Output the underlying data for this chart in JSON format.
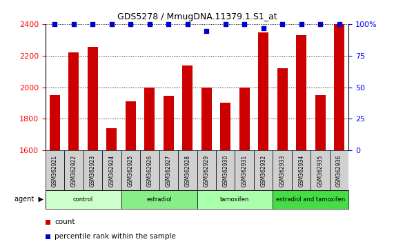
{
  "title": "GDS5278 / MmugDNA.11379.1.S1_at",
  "samples": [
    "GSM362921",
    "GSM362922",
    "GSM362923",
    "GSM362924",
    "GSM362925",
    "GSM362926",
    "GSM362927",
    "GSM362928",
    "GSM362929",
    "GSM362930",
    "GSM362931",
    "GSM362932",
    "GSM362933",
    "GSM362934",
    "GSM362935",
    "GSM362936"
  ],
  "counts": [
    1950,
    2220,
    2255,
    1740,
    1910,
    2000,
    1945,
    2140,
    2000,
    1900,
    2000,
    2350,
    2120,
    2330,
    1950,
    2400
  ],
  "percentiles": [
    100,
    100,
    100,
    100,
    100,
    100,
    100,
    100,
    95,
    100,
    100,
    97,
    100,
    100,
    100,
    100
  ],
  "bar_color": "#cc0000",
  "dot_color": "#0000cc",
  "ylim_left": [
    1600,
    2400
  ],
  "ylim_right": [
    0,
    100
  ],
  "yticks_left": [
    1600,
    1800,
    2000,
    2200,
    2400
  ],
  "yticks_right": [
    0,
    25,
    50,
    75,
    100
  ],
  "groups": [
    {
      "label": "control",
      "start": 0,
      "end": 4,
      "color": "#ccffcc"
    },
    {
      "label": "estradiol",
      "start": 4,
      "end": 8,
      "color": "#88ee88"
    },
    {
      "label": "tamoxifen",
      "start": 8,
      "end": 12,
      "color": "#aaffaa"
    },
    {
      "label": "estradiol and tamoxifen",
      "start": 12,
      "end": 16,
      "color": "#44dd44"
    }
  ],
  "agent_label": "agent",
  "legend_count_label": "count",
  "legend_pct_label": "percentile rank within the sample",
  "background_color": "#ffffff",
  "plot_bg_color": "#ffffff",
  "tick_area_color": "#d0d0d0"
}
